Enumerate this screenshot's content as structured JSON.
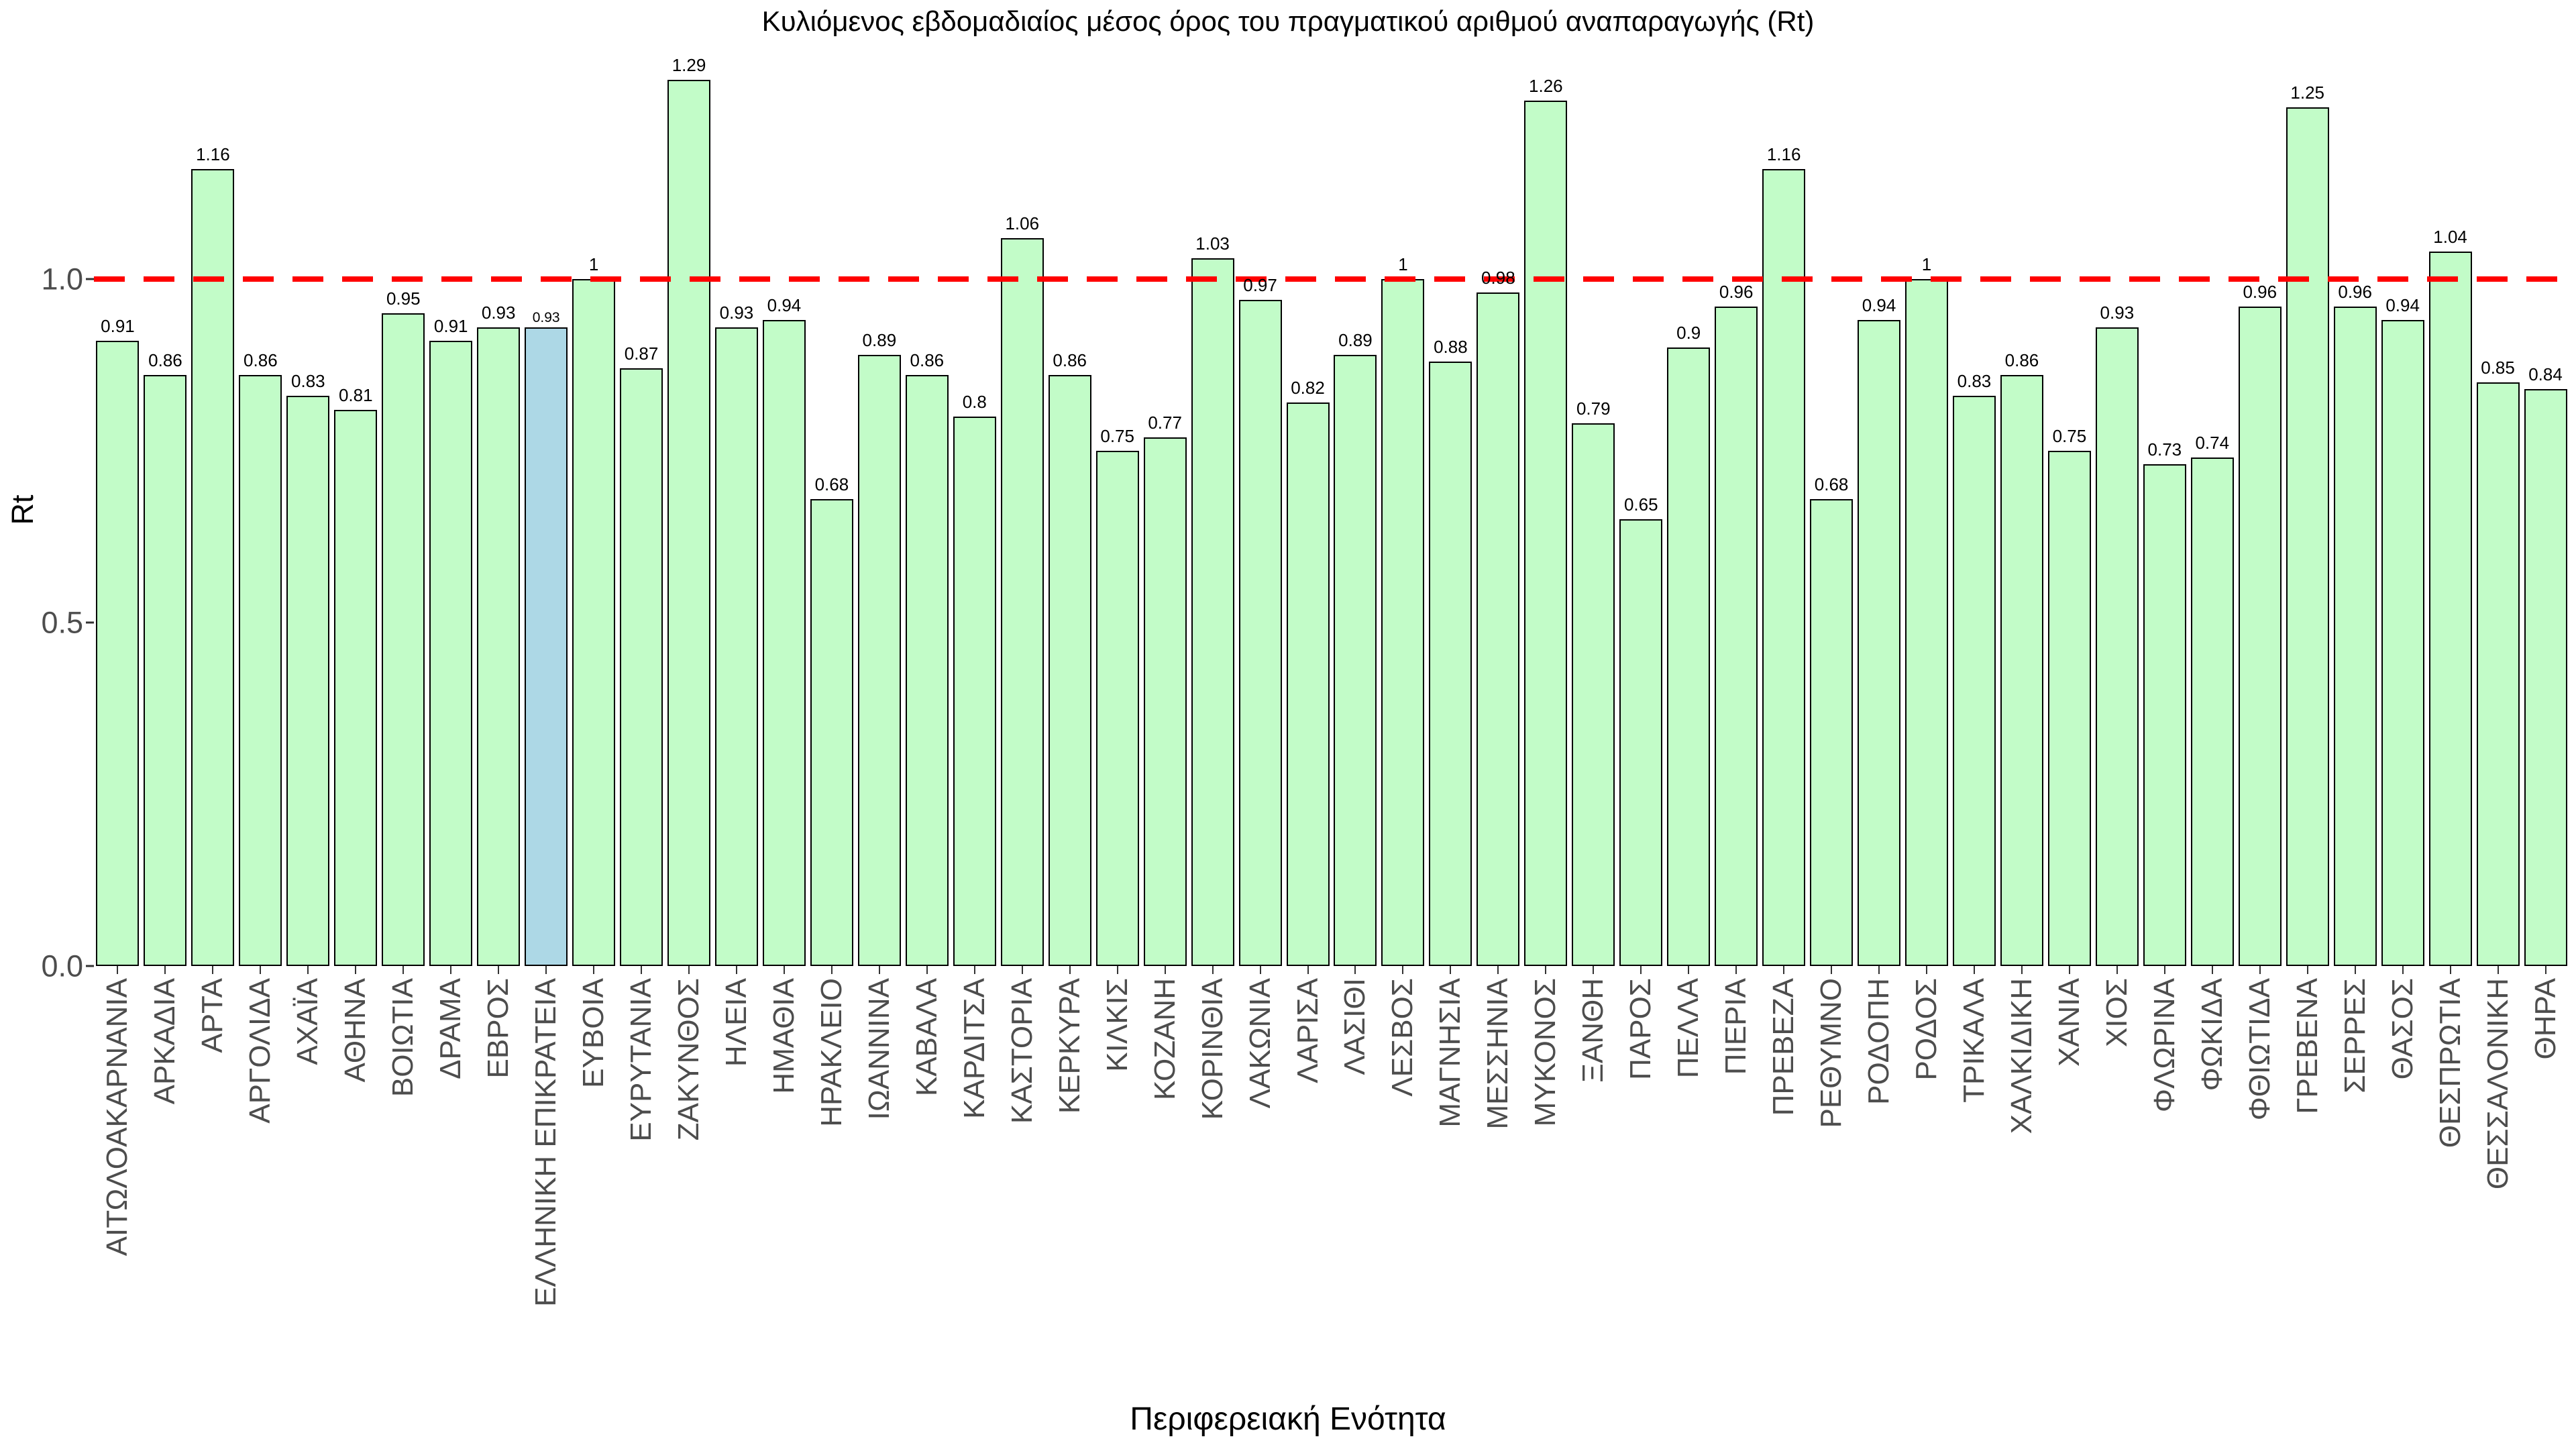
{
  "title": "Κυλιόμενος εβδομαδιαίος μέσος όρος του πραγματικού αριθμού αναπαραγωγής (Rt)",
  "y_axis": {
    "label": "Rt",
    "tick_labels": [
      "0.0",
      "0.5",
      "1.0"
    ],
    "tick_values": [
      0,
      0.5,
      1.0
    ]
  },
  "x_axis": {
    "label": "Περιφερειακή Ενότητα"
  },
  "reference_line": {
    "value": 1.0,
    "style": "dashed",
    "color": "#FF0000"
  },
  "colors": {
    "bar_fill": "#C2FCC8",
    "bar_highlight_fill": "#ADD8E6",
    "bar_border": "#000000",
    "tick_text": "#4D4D4D",
    "reference_line": "#FF0000"
  },
  "chart_data": {
    "type": "bar",
    "title": "Κυλιόμενος εβδομαδιαίος μέσος όρος του πραγματικού αριθμού αναπαραγωγής (Rt)",
    "xlabel": "Περιφερειακή Ενότητα",
    "ylabel": "Rt",
    "ylim": [
      0,
      1.33
    ],
    "yticks": [
      0,
      0.5,
      1.0
    ],
    "grid": false,
    "hline": 1.0,
    "highlight_index": 9,
    "highlight_category": "ΕΛΛΗΝΙΚΗ ΕΠΙΚΡΑΤΕΙΑ",
    "categories": [
      "ΑΙΤΩΛΟΑΚΑΡΝΑΝΙΑ",
      "ΑΡΚΑΔΙΑ",
      "ΑΡΤΑ",
      "ΑΡΓΟΛΙΔΑ",
      "ΑΧΑΪΑ",
      "ΑΘΗΝΑ",
      "ΒΟΙΩΤΙΑ",
      "ΔΡΑΜΑ",
      "ΕΒΡΟΣ",
      "ΕΛΛΗΝΙΚΗ ΕΠΙΚΡΑΤΕΙΑ",
      "ΕΥΒΟΙΑ",
      "ΕΥΡΥΤΑΝΙΑ",
      "ΖΑΚΥΝΘΟΣ",
      "ΗΛΕΙΑ",
      "ΗΜΑΘΙΑ",
      "ΗΡΑΚΛΕΙΟ",
      "ΙΩΑΝΝΙΝΑ",
      "ΚΑΒΑΛΑ",
      "ΚΑΡΔΙΤΣΑ",
      "ΚΑΣΤΟΡΙΑ",
      "ΚΕΡΚΥΡΑ",
      "ΚΙΛΚΙΣ",
      "ΚΟΖΑΝΗ",
      "ΚΟΡΙΝΘΙΑ",
      "ΛΑΚΩΝΙΑ",
      "ΛΑΡΙΣΑ",
      "ΛΑΣΙΘΙ",
      "ΛΕΣΒΟΣ",
      "ΜΑΓΝΗΣΙΑ",
      "ΜΕΣΣΗΝΙΑ",
      "ΜΥΚΟΝΟΣ",
      "ΞΑΝΘΗ",
      "ΠΑΡΟΣ",
      "ΠΕΛΛΑ",
      "ΠΙΕΡΙΑ",
      "ΠΡΕΒΕΖΑ",
      "ΡΕΘΥΜΝΟ",
      "ΡΟΔΟΠΗ",
      "ΡΟΔΟΣ",
      "ΤΡΙΚΑΛΑ",
      "ΧΑΛΚΙΔΙΚΗ",
      "ΧΑΝΙΑ",
      "ΧΙΟΣ",
      "ΦΛΩΡΙΝΑ",
      "ΦΩΚΙΔΑ",
      "ΦΘΙΩΤΙΔΑ",
      "ΓΡΕΒΕΝΑ",
      "ΣΕΡΡΕΣ",
      "ΘΑΣΟΣ",
      "ΘΕΣΠΡΩΤΙΑ",
      "ΘΕΣΣΑΛΟΝΙΚΗ",
      "ΘΗΡΑ"
    ],
    "values": [
      0.91,
      0.86,
      1.16,
      0.86,
      0.83,
      0.81,
      0.95,
      0.91,
      0.93,
      0.93,
      1,
      0.87,
      1.29,
      0.93,
      0.94,
      0.68,
      0.89,
      0.86,
      0.8,
      1.06,
      0.86,
      0.75,
      0.77,
      1.03,
      0.97,
      0.82,
      0.89,
      1,
      0.88,
      0.98,
      1.26,
      0.79,
      0.65,
      0.9,
      0.96,
      1.16,
      0.68,
      0.94,
      1,
      0.83,
      0.86,
      0.75,
      0.93,
      0.73,
      0.74,
      0.96,
      1.25,
      0.96,
      0.94,
      1.04,
      0.85,
      0.84
    ],
    "value_labels": [
      "0.91",
      "0.86",
      "1.16",
      "0.86",
      "0.83",
      "0.81",
      "0.95",
      "0.91",
      "0.93",
      "0.93",
      "1",
      "0.87",
      "1.29",
      "0.93",
      "0.94",
      "0.68",
      "0.89",
      "0.86",
      "0.8",
      "1.06",
      "0.86",
      "0.75",
      "0.77",
      "1.03",
      "0.97",
      "0.82",
      "0.89",
      "1",
      "0.88",
      "0.98",
      "1.26",
      "0.79",
      "0.65",
      "0.9",
      "0.96",
      "1.16",
      "0.68",
      "0.94",
      "1",
      "0.83",
      "0.86",
      "0.75",
      "0.93",
      "0.73",
      "0.74",
      "0.96",
      "1.25",
      "0.96",
      "0.94",
      "1.04",
      "0.85",
      "0.84"
    ]
  }
}
